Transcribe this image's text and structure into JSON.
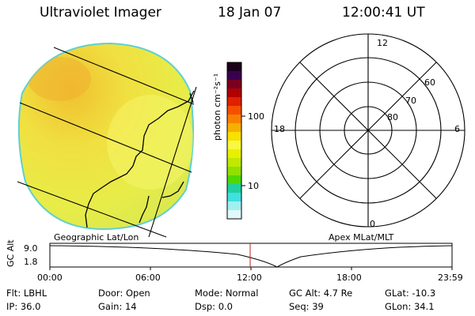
{
  "header": {
    "instrument": "Ultraviolet Imager",
    "date": "18 Jan 07",
    "time": "12:00:41 UT"
  },
  "colorbar": {
    "unit_label": "photon cm⁻²s⁻¹",
    "ticks": [
      "100",
      "10"
    ],
    "colors": [
      "#1a0018",
      "#3a0050",
      "#7a0020",
      "#b00000",
      "#e02000",
      "#f45000",
      "#f88000",
      "#f8b000",
      "#f8e000",
      "#f8f840",
      "#e8f000",
      "#c0e800",
      "#90e000",
      "#50d800",
      "#20d0a0",
      "#40e0e0",
      "#a0f0f0",
      "#e0f8f8"
    ]
  },
  "polar_plot": {
    "latitude_labels": [
      "60",
      "70",
      "80"
    ],
    "mlt_labels": {
      "top": "12",
      "left": "18",
      "right": "6",
      "bottom": "0"
    }
  },
  "coordinate_labels": {
    "left": "Geographic Lat/Lon",
    "right": "Apex MLat/MLT"
  },
  "altitude_plot": {
    "ylabel": "GC Alt",
    "y_ticks": [
      "9.0",
      "1.8"
    ],
    "x_ticks": [
      "00:00",
      "06:00",
      "12:00",
      "18:00",
      "23:59"
    ],
    "marker_time": "12:00:41"
  },
  "status": {
    "row1": [
      {
        "label": "Flt:",
        "value": "LBHL"
      },
      {
        "label": "Door:",
        "value": "Open"
      },
      {
        "label": "Mode:",
        "value": "Normal"
      },
      {
        "label": "GC Alt:",
        "value": "4.7 Re"
      },
      {
        "label": "GLat:",
        "value": "-10.3"
      }
    ],
    "row2": [
      {
        "label": "IP:",
        "value": "36.0"
      },
      {
        "label": "Gain:",
        "value": "14"
      },
      {
        "label": "Dsp:",
        "value": "0.0"
      },
      {
        "label": "Seq:",
        "value": "39"
      },
      {
        "label": "GLon:",
        "value": "34.1"
      }
    ]
  }
}
